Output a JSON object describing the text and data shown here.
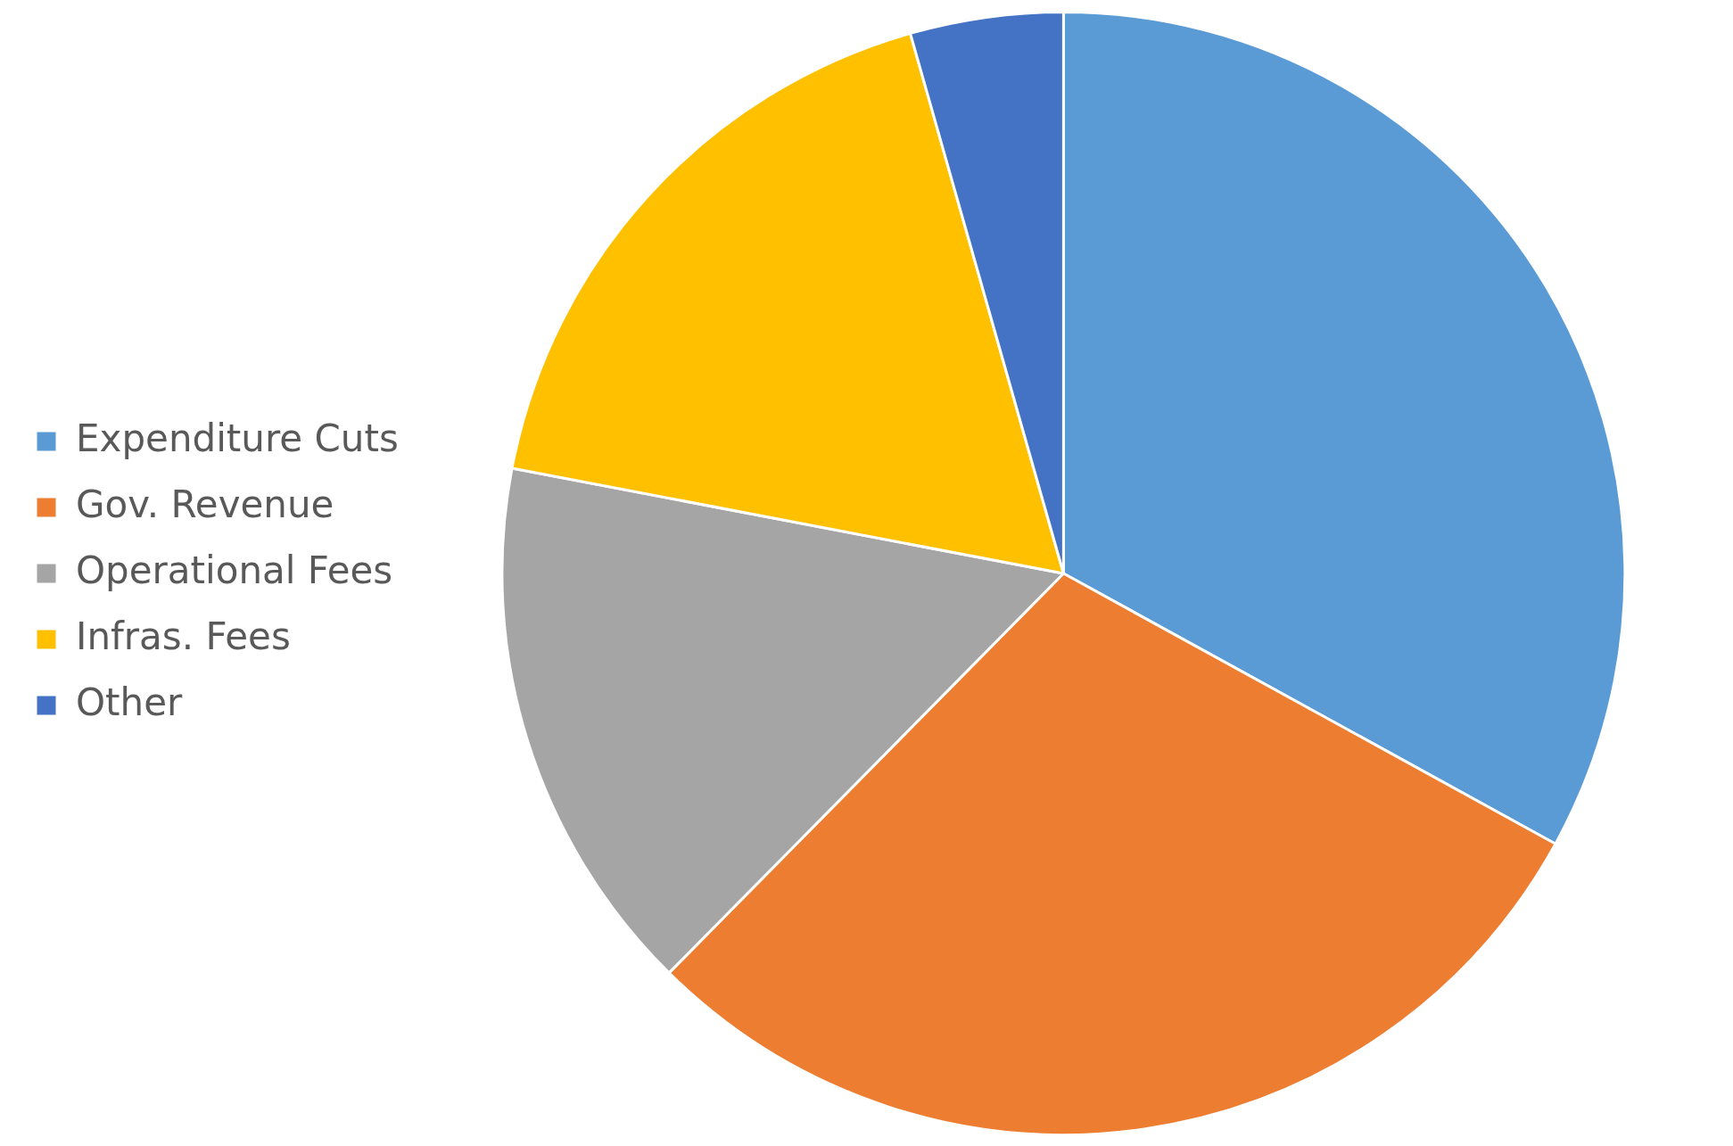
{
  "chart_data": {
    "type": "pie",
    "categories": [
      "Expenditure Cuts",
      "Gov. Revenue",
      "Operational Fees",
      "Infras. Fees",
      "Other"
    ],
    "values": [
      33.0,
      29.4,
      15.6,
      17.6,
      4.4
    ],
    "colors": [
      "#5b9bd5",
      "#ed7d31",
      "#a5a5a5",
      "#ffc000",
      "#4472c4"
    ],
    "legend": "left"
  }
}
